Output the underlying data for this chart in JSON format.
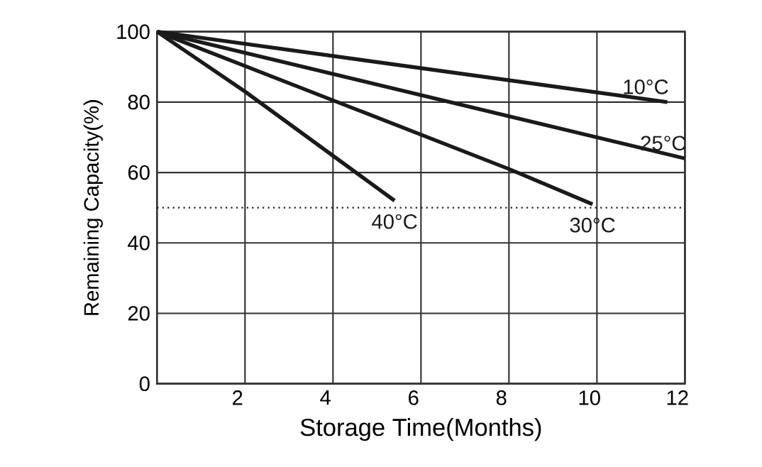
{
  "chart_data": {
    "type": "line",
    "xlabel": "Storage Time(Months)",
    "ylabel": "Remaining Capacity(%)",
    "xlim": [
      0,
      12
    ],
    "ylim": [
      0,
      100
    ],
    "xticks": [
      2,
      4,
      6,
      8,
      10,
      12
    ],
    "yticks": [
      0,
      20,
      40,
      60,
      80,
      100
    ],
    "grid": true,
    "marker": "none",
    "line_style": "solid",
    "series": [
      {
        "name": "10°C",
        "color": "#1a1a1a",
        "x": [
          0,
          11.6
        ],
        "values": [
          100,
          80
        ]
      },
      {
        "name": "25°C",
        "color": "#1a1a1a",
        "x": [
          0,
          12
        ],
        "values": [
          100,
          64
        ]
      },
      {
        "name": "30°C",
        "color": "#1a1a1a",
        "x": [
          0,
          8,
          9.9
        ],
        "values": [
          100,
          61,
          51
        ]
      },
      {
        "name": "40°C",
        "color": "#1a1a1a",
        "x": [
          0,
          2,
          5.4
        ],
        "values": [
          100,
          83,
          52
        ]
      }
    ],
    "ref_lines": [
      {
        "axis": "y",
        "value": 50,
        "color": "#1a1a1a",
        "line_style": "dotted"
      }
    ]
  }
}
